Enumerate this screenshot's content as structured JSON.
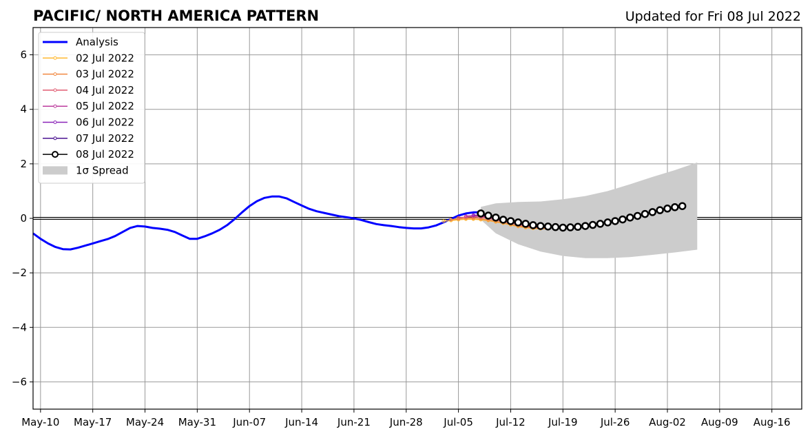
{
  "chart_data": {
    "type": "line",
    "title": "PACIFIC/ NORTH AMERICA PATTERN",
    "subtitle": "Updated for Fri 08 Jul 2022",
    "xlabel": "",
    "ylabel": "",
    "x_range": [
      "2022-05-09",
      "2022-08-20"
    ],
    "ylim": [
      -7,
      7
    ],
    "grid": true,
    "legend_position": "top-left",
    "x_ticks": [
      {
        "date": "2022-05-10",
        "label": "May-10"
      },
      {
        "date": "2022-05-17",
        "label": "May-17"
      },
      {
        "date": "2022-05-24",
        "label": "May-24"
      },
      {
        "date": "2022-05-31",
        "label": "May-31"
      },
      {
        "date": "2022-06-07",
        "label": "Jun-07"
      },
      {
        "date": "2022-06-14",
        "label": "Jun-14"
      },
      {
        "date": "2022-06-21",
        "label": "Jun-21"
      },
      {
        "date": "2022-06-28",
        "label": "Jun-28"
      },
      {
        "date": "2022-07-05",
        "label": "Jul-05"
      },
      {
        "date": "2022-07-12",
        "label": "Jul-12"
      },
      {
        "date": "2022-07-19",
        "label": "Jul-19"
      },
      {
        "date": "2022-07-26",
        "label": "Jul-26"
      },
      {
        "date": "2022-08-02",
        "label": "Aug-02"
      },
      {
        "date": "2022-08-09",
        "label": "Aug-09"
      },
      {
        "date": "2022-08-16",
        "label": "Aug-16"
      }
    ],
    "y_ticks": [
      {
        "value": 6,
        "label": "6"
      },
      {
        "value": 4,
        "label": "4"
      },
      {
        "value": 2,
        "label": "2"
      },
      {
        "value": 0,
        "label": "0"
      },
      {
        "value": -2,
        "label": "−2"
      },
      {
        "value": -4,
        "label": "−4"
      },
      {
        "value": -6,
        "label": "−6"
      }
    ],
    "analysis": {
      "name": "Analysis",
      "color": "#0000ff",
      "points": [
        [
          "2022-05-09",
          -0.55
        ],
        [
          "2022-05-10",
          -0.75
        ],
        [
          "2022-05-11",
          -0.92
        ],
        [
          "2022-05-12",
          -1.05
        ],
        [
          "2022-05-13",
          -1.13
        ],
        [
          "2022-05-14",
          -1.14
        ],
        [
          "2022-05-15",
          -1.08
        ],
        [
          "2022-05-16",
          -1.0
        ],
        [
          "2022-05-17",
          -0.92
        ],
        [
          "2022-05-18",
          -0.84
        ],
        [
          "2022-05-19",
          -0.76
        ],
        [
          "2022-05-20",
          -0.65
        ],
        [
          "2022-05-21",
          -0.5
        ],
        [
          "2022-05-22",
          -0.35
        ],
        [
          "2022-05-23",
          -0.28
        ],
        [
          "2022-05-24",
          -0.3
        ],
        [
          "2022-05-25",
          -0.35
        ],
        [
          "2022-05-26",
          -0.38
        ],
        [
          "2022-05-27",
          -0.42
        ],
        [
          "2022-05-28",
          -0.5
        ],
        [
          "2022-05-29",
          -0.63
        ],
        [
          "2022-05-30",
          -0.75
        ],
        [
          "2022-05-31",
          -0.75
        ],
        [
          "2022-06-01",
          -0.66
        ],
        [
          "2022-06-02",
          -0.55
        ],
        [
          "2022-06-03",
          -0.42
        ],
        [
          "2022-06-04",
          -0.25
        ],
        [
          "2022-06-05",
          -0.03
        ],
        [
          "2022-06-06",
          0.22
        ],
        [
          "2022-06-07",
          0.45
        ],
        [
          "2022-06-08",
          0.63
        ],
        [
          "2022-06-09",
          0.75
        ],
        [
          "2022-06-10",
          0.8
        ],
        [
          "2022-06-11",
          0.8
        ],
        [
          "2022-06-12",
          0.73
        ],
        [
          "2022-06-13",
          0.6
        ],
        [
          "2022-06-14",
          0.47
        ],
        [
          "2022-06-15",
          0.35
        ],
        [
          "2022-06-16",
          0.26
        ],
        [
          "2022-06-17",
          0.2
        ],
        [
          "2022-06-18",
          0.14
        ],
        [
          "2022-06-19",
          0.08
        ],
        [
          "2022-06-20",
          0.04
        ],
        [
          "2022-06-21",
          0.0
        ],
        [
          "2022-06-22",
          -0.06
        ],
        [
          "2022-06-23",
          -0.14
        ],
        [
          "2022-06-24",
          -0.21
        ],
        [
          "2022-06-25",
          -0.25
        ],
        [
          "2022-06-26",
          -0.28
        ],
        [
          "2022-06-27",
          -0.32
        ],
        [
          "2022-06-28",
          -0.35
        ],
        [
          "2022-06-29",
          -0.37
        ],
        [
          "2022-06-30",
          -0.37
        ],
        [
          "2022-07-01",
          -0.33
        ],
        [
          "2022-07-02",
          -0.26
        ],
        [
          "2022-07-03",
          -0.15
        ],
        [
          "2022-07-04",
          -0.02
        ],
        [
          "2022-07-05",
          0.1
        ],
        [
          "2022-07-06",
          0.18
        ],
        [
          "2022-07-07",
          0.22
        ],
        [
          "2022-07-08",
          0.22
        ]
      ]
    },
    "forecasts": [
      {
        "name": "02 Jul 2022",
        "color": "#ffb830",
        "start": "2022-07-03",
        "values": [
          -0.1,
          -0.08,
          -0.05,
          -0.03,
          -0.03,
          -0.05,
          -0.08,
          -0.13,
          -0.18,
          -0.24,
          -0.3,
          -0.34,
          -0.37,
          -0.38,
          -0.38
        ]
      },
      {
        "name": "03 Jul 2022",
        "color": "#f08840",
        "start": "2022-07-04",
        "values": [
          -0.05,
          -0.02,
          0.0,
          0.0,
          -0.02,
          -0.06,
          -0.11,
          -0.16,
          -0.22,
          -0.28,
          -0.32,
          -0.35,
          -0.37,
          -0.37
        ]
      },
      {
        "name": "04 Jul 2022",
        "color": "#e05a70",
        "start": "2022-07-05",
        "values": [
          0.02,
          0.05,
          0.06,
          0.04,
          0.0,
          -0.05,
          -0.11,
          -0.17,
          -0.23,
          -0.28,
          -0.32,
          -0.34,
          -0.35
        ]
      },
      {
        "name": "05 Jul 2022",
        "color": "#bb3b9c",
        "start": "2022-07-06",
        "values": [
          0.08,
          0.1,
          0.08,
          0.04,
          -0.02,
          -0.08,
          -0.14,
          -0.2,
          -0.25,
          -0.29,
          -0.31,
          -0.32
        ]
      },
      {
        "name": "06 Jul 2022",
        "color": "#8a22b8",
        "start": "2022-07-07",
        "values": [
          0.12,
          0.11,
          0.07,
          0.02,
          -0.04,
          -0.1,
          -0.16,
          -0.21,
          -0.25,
          -0.28,
          -0.3
        ]
      },
      {
        "name": "07 Jul 2022",
        "color": "#4a1090",
        "start": "2022-07-08",
        "values": [
          0.14,
          0.1,
          0.04,
          -0.02,
          -0.08,
          -0.14,
          -0.19,
          -0.23,
          -0.26,
          -0.28
        ]
      },
      {
        "name": "08 Jul 2022",
        "color": "#000000",
        "start": "2022-07-08",
        "values": [
          0.18,
          0.1,
          0.03,
          -0.05,
          -0.1,
          -0.15,
          -0.2,
          -0.25,
          -0.28,
          -0.3,
          -0.32,
          -0.34,
          -0.33,
          -0.31,
          -0.28,
          -0.24,
          -0.2,
          -0.15,
          -0.1,
          -0.04,
          0.03,
          0.09,
          0.16,
          0.23,
          0.3,
          0.36,
          0.41,
          0.45
        ]
      }
    ],
    "spread": {
      "name": "1σ Spread",
      "color": "#cccccc",
      "points": [
        [
          "2022-07-08",
          0.42,
          -0.05
        ],
        [
          "2022-07-10",
          0.55,
          -0.55
        ],
        [
          "2022-07-13",
          0.6,
          -0.95
        ],
        [
          "2022-07-16",
          0.62,
          -1.22
        ],
        [
          "2022-07-19",
          0.7,
          -1.38
        ],
        [
          "2022-07-22",
          0.82,
          -1.46
        ],
        [
          "2022-07-25",
          1.0,
          -1.46
        ],
        [
          "2022-07-28",
          1.25,
          -1.42
        ],
        [
          "2022-07-31",
          1.52,
          -1.34
        ],
        [
          "2022-08-03",
          1.77,
          -1.25
        ],
        [
          "2022-08-06",
          2.05,
          -1.15
        ]
      ]
    }
  }
}
